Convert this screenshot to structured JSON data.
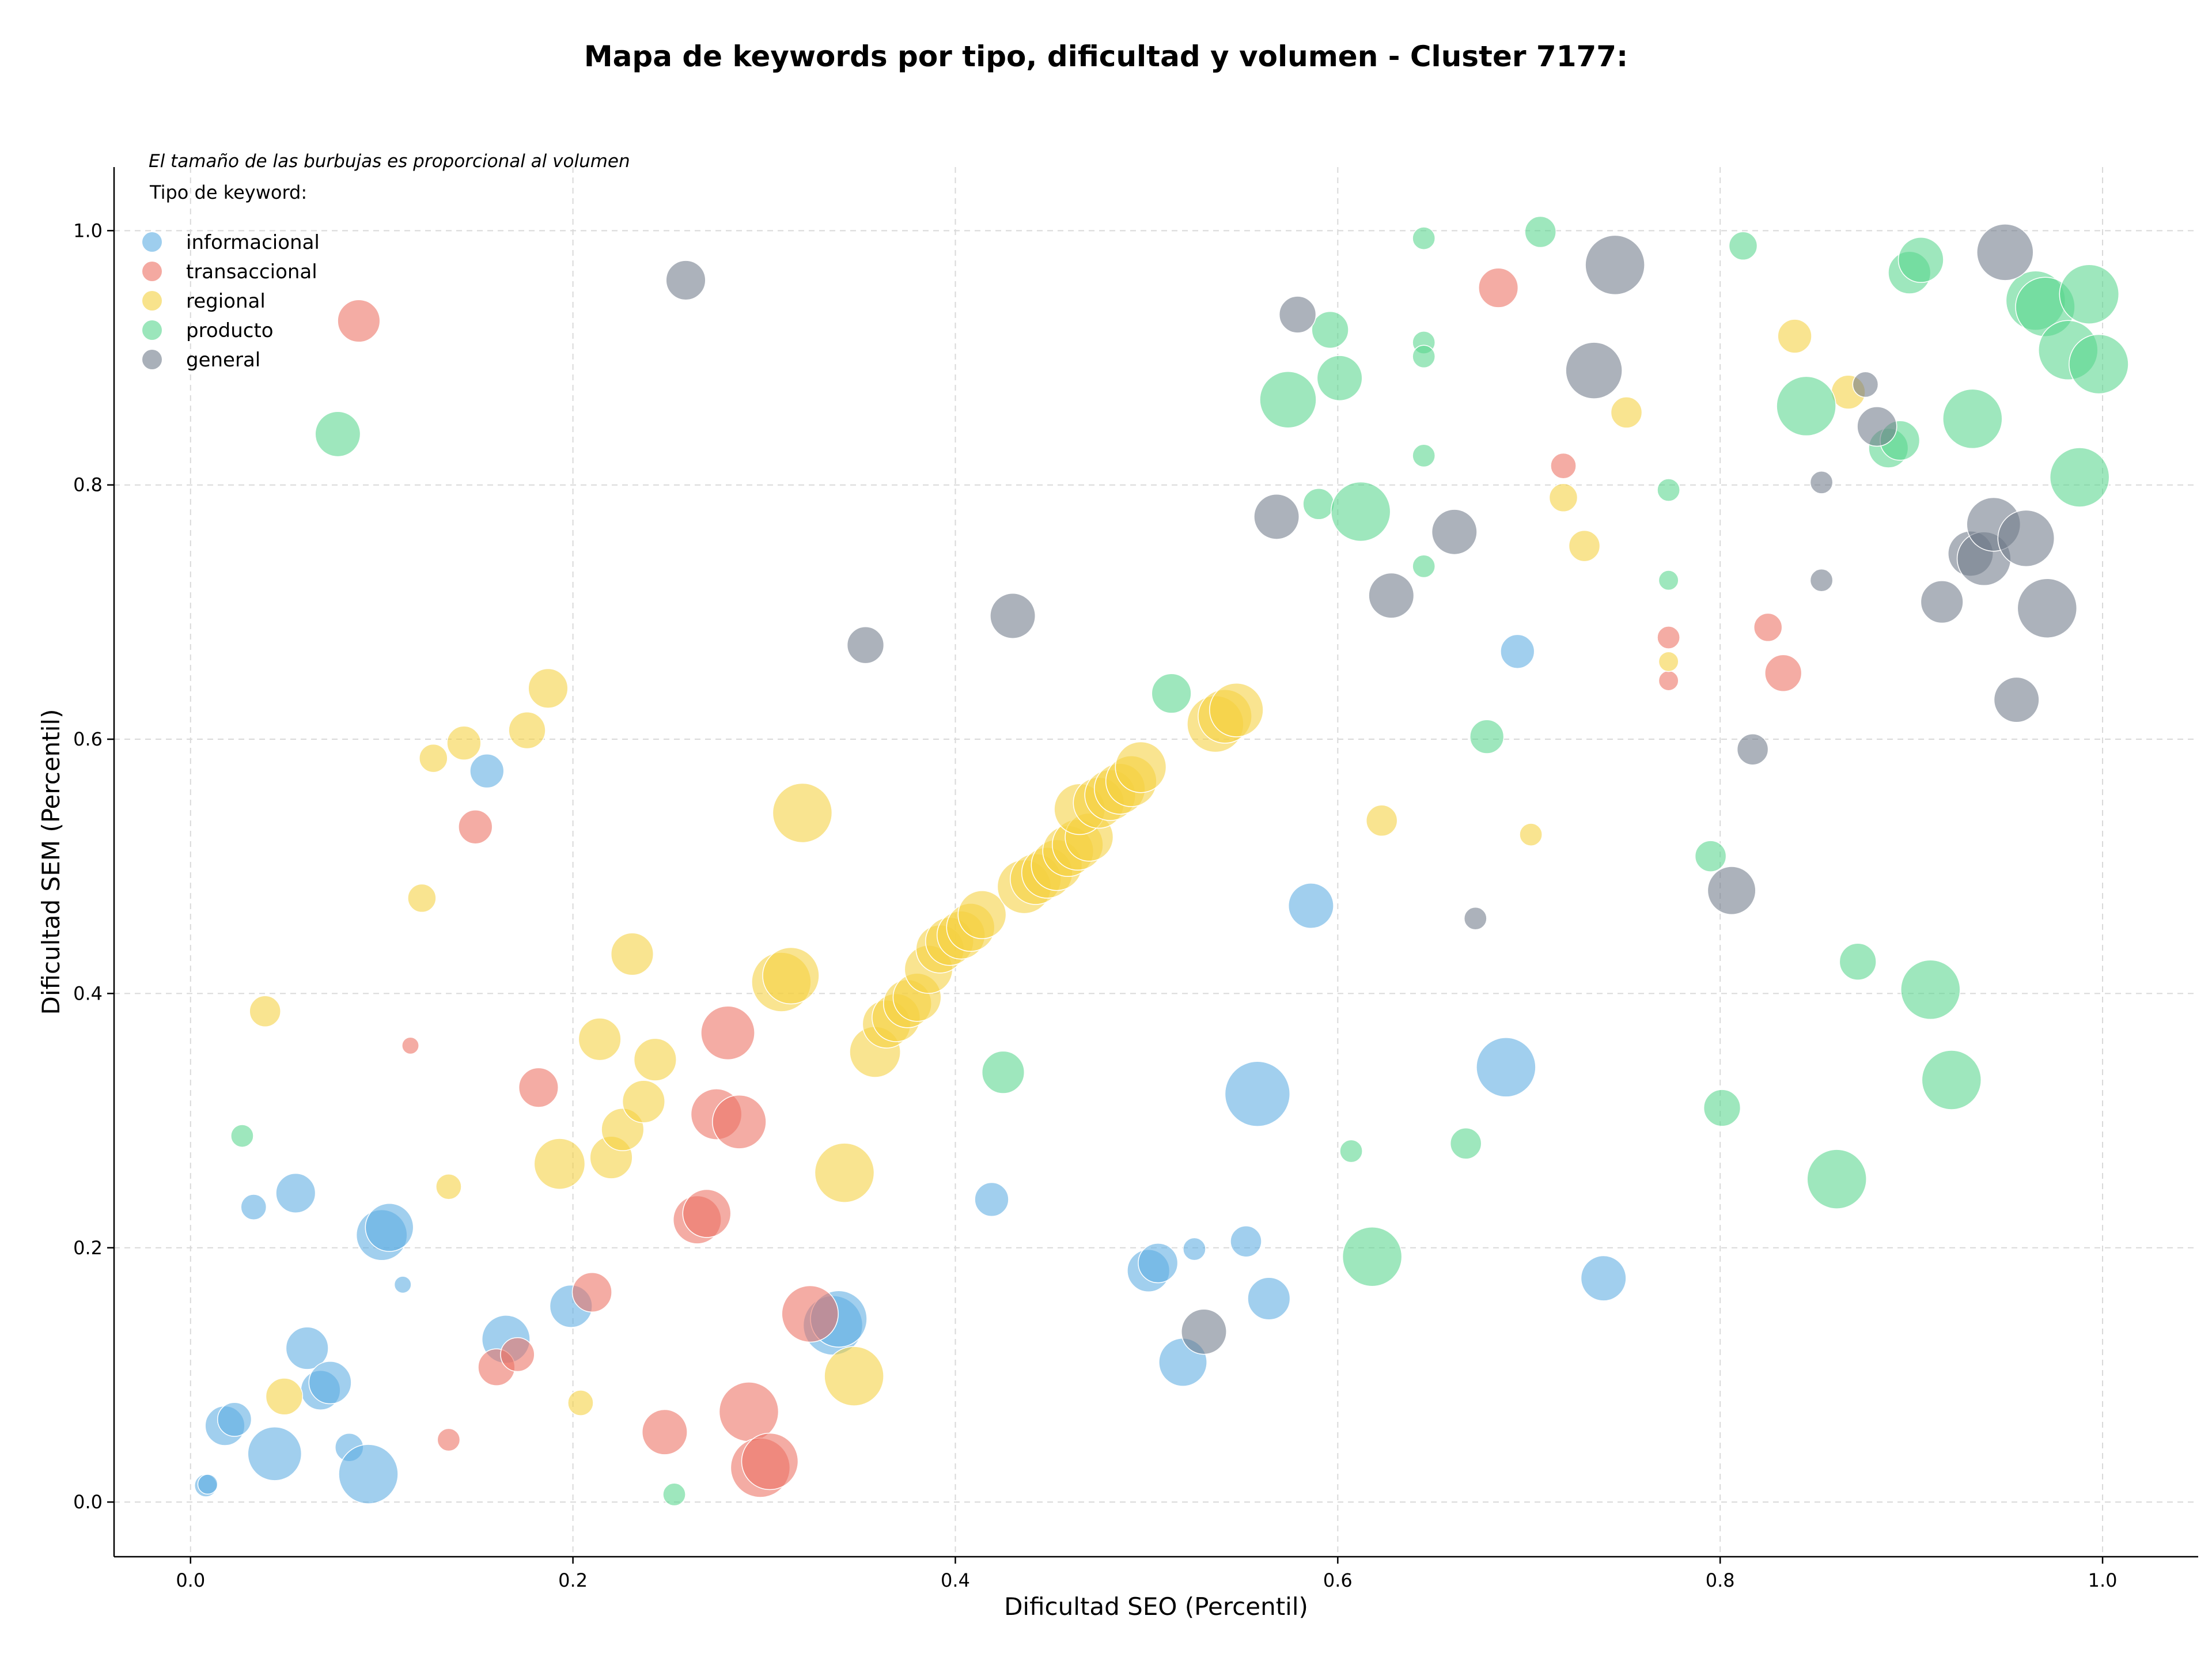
{
  "chart_data": {
    "type": "scatter",
    "title": "Mapa de keywords por tipo, dificultad y volumen - Cluster 7177:",
    "xlabel": "Dificultad SEO (Percentil)",
    "ylabel": "Dificultad SEM (Percentil)",
    "xlim": [
      -0.04,
      1.05
    ],
    "ylim": [
      -0.043,
      1.05
    ],
    "x_ticks": [
      "0.0",
      "0.2",
      "0.4",
      "0.6",
      "0.8",
      "1.0"
    ],
    "y_ticks": [
      "0.0",
      "0.2",
      "0.4",
      "0.6",
      "0.8",
      "1.0"
    ],
    "grid": true,
    "annotation": "El tamaño de las burbujas es proporcional al volumen",
    "legend": {
      "title": "Tipo de keyword:",
      "placement": "top-left",
      "entries": [
        "informacional",
        "transaccional",
        "regional",
        "producto",
        "general"
      ]
    },
    "size_note": "third value of each point is relative bubble size (volume)",
    "series": [
      {
        "name": "informacional",
        "color": "#5DADE2",
        "points": [
          [
            0.008,
            0.013,
            8
          ],
          [
            0.009,
            0.014,
            7
          ],
          [
            0.018,
            0.06,
            14
          ],
          [
            0.023,
            0.065,
            12
          ],
          [
            0.033,
            0.232,
            9
          ],
          [
            0.044,
            0.038,
            19
          ],
          [
            0.055,
            0.243,
            14
          ],
          [
            0.061,
            0.121,
            15
          ],
          [
            0.068,
            0.088,
            14
          ],
          [
            0.073,
            0.094,
            15
          ],
          [
            0.083,
            0.043,
            10
          ],
          [
            0.093,
            0.022,
            21
          ],
          [
            0.1,
            0.21,
            18
          ],
          [
            0.104,
            0.216,
            17
          ],
          [
            0.111,
            0.171,
            6
          ],
          [
            0.155,
            0.575,
            12
          ],
          [
            0.165,
            0.128,
            17
          ],
          [
            0.199,
            0.154,
            15
          ],
          [
            0.336,
            0.139,
            21
          ],
          [
            0.339,
            0.144,
            20
          ],
          [
            0.419,
            0.238,
            12
          ],
          [
            0.501,
            0.182,
            15
          ],
          [
            0.506,
            0.188,
            14
          ],
          [
            0.519,
            0.11,
            17
          ],
          [
            0.525,
            0.199,
            8
          ],
          [
            0.552,
            0.205,
            11
          ],
          [
            0.558,
            0.321,
            23
          ],
          [
            0.564,
            0.16,
            15
          ],
          [
            0.586,
            0.469,
            16
          ],
          [
            0.688,
            0.342,
            21
          ],
          [
            0.694,
            0.669,
            12
          ],
          [
            0.739,
            0.176,
            16
          ]
        ]
      },
      {
        "name": "transaccional",
        "color": "#EC7063",
        "points": [
          [
            0.088,
            0.929,
            15
          ],
          [
            0.115,
            0.359,
            6
          ],
          [
            0.135,
            0.049,
            8
          ],
          [
            0.149,
            0.531,
            12
          ],
          [
            0.16,
            0.106,
            13
          ],
          [
            0.171,
            0.116,
            12
          ],
          [
            0.182,
            0.326,
            14
          ],
          [
            0.21,
            0.165,
            14
          ],
          [
            0.248,
            0.055,
            16
          ],
          [
            0.265,
            0.222,
            17
          ],
          [
            0.27,
            0.227,
            17
          ],
          [
            0.275,
            0.305,
            18
          ],
          [
            0.281,
            0.369,
            19
          ],
          [
            0.287,
            0.299,
            19
          ],
          [
            0.292,
            0.071,
            21
          ],
          [
            0.298,
            0.027,
            21
          ],
          [
            0.303,
            0.032,
            20
          ],
          [
            0.324,
            0.148,
            20
          ],
          [
            0.684,
            0.955,
            14
          ],
          [
            0.718,
            0.815,
            9
          ],
          [
            0.773,
            0.68,
            8
          ],
          [
            0.773,
            0.646,
            7
          ],
          [
            0.825,
            0.688,
            10
          ],
          [
            0.833,
            0.652,
            13
          ]
        ]
      },
      {
        "name": "regional",
        "color": "#F4D03F",
        "points": [
          [
            0.039,
            0.386,
            11
          ],
          [
            0.049,
            0.083,
            13
          ],
          [
            0.121,
            0.475,
            10
          ],
          [
            0.127,
            0.585,
            10
          ],
          [
            0.135,
            0.248,
            9
          ],
          [
            0.143,
            0.597,
            12
          ],
          [
            0.176,
            0.607,
            13
          ],
          [
            0.187,
            0.64,
            14
          ],
          [
            0.193,
            0.266,
            18
          ],
          [
            0.204,
            0.078,
            9
          ],
          [
            0.214,
            0.364,
            15
          ],
          [
            0.22,
            0.271,
            15
          ],
          [
            0.226,
            0.293,
            15
          ],
          [
            0.231,
            0.431,
            15
          ],
          [
            0.237,
            0.315,
            15
          ],
          [
            0.243,
            0.348,
            15
          ],
          [
            0.309,
            0.409,
            21
          ],
          [
            0.314,
            0.414,
            20
          ],
          [
            0.32,
            0.542,
            21
          ],
          [
            0.342,
            0.259,
            21
          ],
          [
            0.347,
            0.099,
            21
          ],
          [
            0.358,
            0.354,
            18
          ],
          [
            0.364,
            0.376,
            17
          ],
          [
            0.369,
            0.381,
            17
          ],
          [
            0.375,
            0.392,
            17
          ],
          [
            0.38,
            0.397,
            17
          ],
          [
            0.386,
            0.419,
            17
          ],
          [
            0.392,
            0.435,
            17
          ],
          [
            0.397,
            0.441,
            17
          ],
          [
            0.403,
            0.446,
            17
          ],
          [
            0.408,
            0.452,
            17
          ],
          [
            0.414,
            0.462,
            17
          ],
          [
            0.436,
            0.484,
            19
          ],
          [
            0.442,
            0.49,
            18
          ],
          [
            0.448,
            0.495,
            18
          ],
          [
            0.453,
            0.501,
            18
          ],
          [
            0.459,
            0.512,
            18
          ],
          [
            0.464,
            0.517,
            18
          ],
          [
            0.47,
            0.523,
            17
          ],
          [
            0.465,
            0.545,
            18
          ],
          [
            0.475,
            0.55,
            18
          ],
          [
            0.481,
            0.556,
            18
          ],
          [
            0.486,
            0.561,
            18
          ],
          [
            0.492,
            0.567,
            18
          ],
          [
            0.497,
            0.578,
            18
          ],
          [
            0.536,
            0.612,
            20
          ],
          [
            0.541,
            0.618,
            19
          ],
          [
            0.547,
            0.623,
            19
          ],
          [
            0.623,
            0.536,
            11
          ],
          [
            0.701,
            0.525,
            8
          ],
          [
            0.718,
            0.79,
            10
          ],
          [
            0.729,
            0.752,
            11
          ],
          [
            0.751,
            0.857,
            11
          ],
          [
            0.773,
            0.661,
            7
          ],
          [
            0.839,
            0.917,
            12
          ],
          [
            0.867,
            0.873,
            12
          ]
        ]
      },
      {
        "name": "producto",
        "color": "#58D68D",
        "points": [
          [
            0.027,
            0.288,
            8
          ],
          [
            0.077,
            0.84,
            16
          ],
          [
            0.253,
            0.006,
            8
          ],
          [
            0.425,
            0.338,
            15
          ],
          [
            0.513,
            0.636,
            14
          ],
          [
            0.574,
            0.867,
            20
          ],
          [
            0.59,
            0.785,
            11
          ],
          [
            0.596,
            0.922,
            13
          ],
          [
            0.601,
            0.884,
            16
          ],
          [
            0.612,
            0.779,
            21
          ],
          [
            0.607,
            0.276,
            8
          ],
          [
            0.618,
            0.193,
            21
          ],
          [
            0.645,
            0.994,
            8
          ],
          [
            0.645,
            0.912,
            8
          ],
          [
            0.645,
            0.901,
            8
          ],
          [
            0.645,
            0.823,
            8
          ],
          [
            0.645,
            0.736,
            8
          ],
          [
            0.667,
            0.282,
            11
          ],
          [
            0.678,
            0.602,
            12
          ],
          [
            0.706,
            0.999,
            11
          ],
          [
            0.773,
            0.796,
            8
          ],
          [
            0.773,
            0.725,
            7
          ],
          [
            0.795,
            0.508,
            11
          ],
          [
            0.801,
            0.31,
            13
          ],
          [
            0.812,
            0.988,
            10
          ],
          [
            0.845,
            0.862,
            21
          ],
          [
            0.861,
            0.254,
            21
          ],
          [
            0.872,
            0.425,
            13
          ],
          [
            0.888,
            0.829,
            14
          ],
          [
            0.894,
            0.835,
            14
          ],
          [
            0.899,
            0.967,
            15
          ],
          [
            0.905,
            0.977,
            16
          ],
          [
            0.91,
            0.403,
            21
          ],
          [
            0.921,
            0.332,
            21
          ],
          [
            0.932,
            0.852,
            21
          ],
          [
            0.965,
            0.945,
            21
          ],
          [
            0.97,
            0.94,
            21
          ],
          [
            0.982,
            0.906,
            21
          ],
          [
            0.988,
            0.806,
            21
          ],
          [
            0.993,
            0.95,
            21
          ],
          [
            0.998,
            0.895,
            21
          ]
        ]
      },
      {
        "name": "general",
        "color": "#707B8A",
        "points": [
          [
            0.259,
            0.961,
            14
          ],
          [
            0.353,
            0.674,
            13
          ],
          [
            0.43,
            0.697,
            16
          ],
          [
            0.53,
            0.134,
            16
          ],
          [
            0.568,
            0.775,
            16
          ],
          [
            0.579,
            0.934,
            13
          ],
          [
            0.628,
            0.713,
            16
          ],
          [
            0.661,
            0.763,
            16
          ],
          [
            0.672,
            0.459,
            8
          ],
          [
            0.734,
            0.89,
            20
          ],
          [
            0.745,
            0.973,
            21
          ],
          [
            0.806,
            0.481,
            17
          ],
          [
            0.817,
            0.592,
            11
          ],
          [
            0.853,
            0.802,
            8
          ],
          [
            0.853,
            0.725,
            8
          ],
          [
            0.876,
            0.879,
            9
          ],
          [
            0.882,
            0.846,
            14
          ],
          [
            0.916,
            0.708,
            15
          ],
          [
            0.931,
            0.746,
            16
          ],
          [
            0.938,
            0.742,
            19
          ],
          [
            0.943,
            0.769,
            19
          ],
          [
            0.949,
            0.983,
            20
          ],
          [
            0.96,
            0.758,
            20
          ],
          [
            0.955,
            0.631,
            16
          ],
          [
            0.971,
            0.703,
            21
          ]
        ]
      }
    ]
  }
}
